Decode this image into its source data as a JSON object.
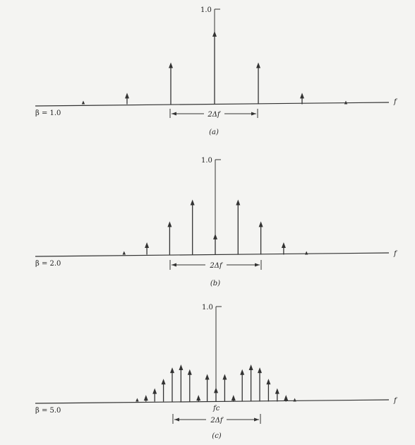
{
  "axis_var": "f",
  "unit_tick": "1.0",
  "width_label": "2Δf",
  "panels": [
    {
      "beta_label": "β = 1.0",
      "caption": "(a)",
      "center_label": "",
      "amplitudes": [
        0.02,
        0.12,
        0.44,
        0.77,
        0.44,
        0.12,
        0.02
      ]
    },
    {
      "beta_label": "β = 2.0",
      "caption": "(b)",
      "center_label": "",
      "amplitudes": [
        0.03,
        0.13,
        0.35,
        0.58,
        0.22,
        0.58,
        0.35,
        0.13,
        0.03
      ]
    },
    {
      "beta_label": "β = 5.0",
      "caption": "(c)",
      "center_label": "fc",
      "amplitudes": [
        0.02,
        0.07,
        0.14,
        0.24,
        0.36,
        0.39,
        0.34,
        0.07,
        0.29,
        0.15,
        0.29,
        0.07,
        0.34,
        0.39,
        0.36,
        0.24,
        0.14,
        0.07,
        0.02
      ]
    }
  ]
}
